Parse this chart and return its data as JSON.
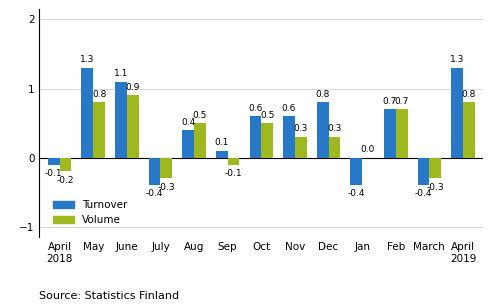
{
  "categories": [
    "April\n2018",
    "May",
    "June",
    "July",
    "Aug",
    "Sep",
    "Oct",
    "Nov",
    "Dec",
    "Jan",
    "Feb",
    "March",
    "April\n2019"
  ],
  "turnover": [
    -0.1,
    1.3,
    1.1,
    -0.4,
    0.4,
    0.1,
    0.6,
    0.6,
    0.8,
    -0.4,
    0.7,
    -0.4,
    1.3
  ],
  "volume": [
    -0.2,
    0.8,
    0.9,
    -0.3,
    0.5,
    -0.1,
    0.5,
    0.3,
    0.3,
    0.0,
    0.7,
    -0.3,
    0.8
  ],
  "turnover_color": "#2878c8",
  "volume_color": "#a0b820",
  "ylim": [
    -1.15,
    2.15
  ],
  "yticks": [
    -1,
    0,
    1,
    2
  ],
  "legend_labels": [
    "Turnover",
    "Volume"
  ],
  "source_text": "Source: Statistics Finland",
  "bar_width": 0.35,
  "label_fontsize": 6.5,
  "tick_fontsize": 7.5,
  "source_fontsize": 8
}
